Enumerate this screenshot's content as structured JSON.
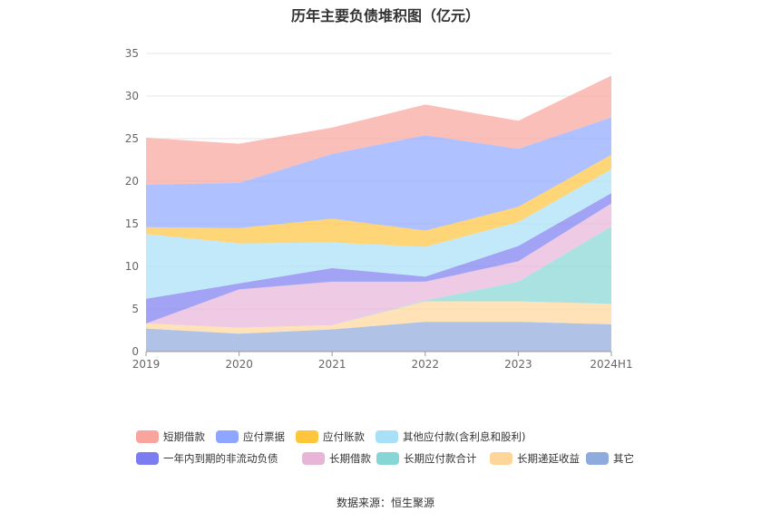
{
  "chart_data": {
    "type": "area",
    "stacked": true,
    "title": "历年主要负债堆积图（亿元）",
    "categories": [
      "2019",
      "2020",
      "2021",
      "2022",
      "2023",
      "2024H1"
    ],
    "ylim": [
      0,
      35
    ],
    "yticks": [
      0,
      5,
      10,
      15,
      20,
      25,
      30,
      35
    ],
    "grid": true,
    "legend_position": "bottom",
    "series": [
      {
        "name": "其它",
        "color": "#8faadc",
        "values": [
          2.7,
          2.1,
          2.6,
          3.5,
          3.5,
          3.2
        ]
      },
      {
        "name": "长期递延收益",
        "color": "#ffd699",
        "values": [
          0.6,
          0.7,
          0.5,
          2.4,
          2.4,
          2.4
        ]
      },
      {
        "name": "长期应付款合计",
        "color": "#86d6d6",
        "values": [
          0.0,
          0.0,
          0.0,
          0.1,
          2.3,
          9.1
        ]
      },
      {
        "name": "长期借款",
        "color": "#e8b4d8",
        "values": [
          0.0,
          4.5,
          5.1,
          2.2,
          2.4,
          2.7
        ]
      },
      {
        "name": "一年内到期的非流动负债",
        "color": "#7b7cf0",
        "values": [
          2.9,
          0.7,
          1.6,
          0.6,
          1.8,
          1.2
        ]
      },
      {
        "name": "其他应付款(含利息和股利)",
        "color": "#a7e0f7",
        "values": [
          7.6,
          4.7,
          3.0,
          3.5,
          2.8,
          2.8
        ]
      },
      {
        "name": "应付账款",
        "color": "#ffc53d",
        "values": [
          0.8,
          1.8,
          2.8,
          1.9,
          1.8,
          1.7
        ]
      },
      {
        "name": "应付票据",
        "color": "#8ea6ff",
        "values": [
          5.0,
          5.3,
          7.6,
          11.2,
          6.8,
          4.4
        ]
      },
      {
        "name": "短期借款",
        "color": "#f9a49c",
        "values": [
          5.5,
          4.6,
          3.1,
          3.6,
          3.3,
          4.9
        ]
      }
    ],
    "legend_order": [
      "短期借款",
      "应付票据",
      "应付账款",
      "其他应付款(含利息和股利)",
      "一年内到期的非流动负债",
      "长期借款",
      "长期应付款合计",
      "长期递延收益",
      "其它"
    ]
  },
  "source_note": "数据来源：恒生聚源"
}
